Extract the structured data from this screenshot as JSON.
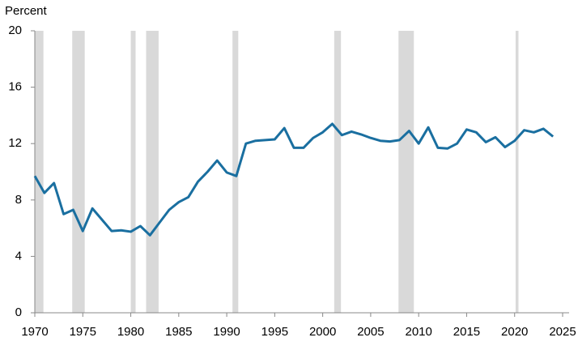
{
  "chart_data": {
    "type": "line",
    "y_axis_label": "Percent",
    "x": [
      1970,
      1971,
      1972,
      1973,
      1974,
      1975,
      1976,
      1977,
      1978,
      1979,
      1980,
      1981,
      1982,
      1983,
      1984,
      1985,
      1986,
      1987,
      1988,
      1989,
      1990,
      1991,
      1992,
      1993,
      1994,
      1995,
      1996,
      1997,
      1998,
      1999,
      2000,
      2001,
      2002,
      2003,
      2004,
      2005,
      2006,
      2007,
      2008,
      2009,
      2010,
      2011,
      2012,
      2013,
      2014,
      2015,
      2016,
      2017,
      2018,
      2019,
      2020,
      2021,
      2022,
      2023,
      2024
    ],
    "series": [
      {
        "color": "#1a6fa0",
        "values": [
          9.7,
          8.5,
          9.2,
          7.0,
          7.3,
          5.8,
          7.4,
          6.6,
          5.8,
          5.85,
          5.75,
          6.15,
          5.5,
          6.4,
          7.3,
          7.85,
          8.2,
          9.3,
          10.0,
          10.8,
          9.95,
          9.7,
          12.0,
          12.2,
          12.25,
          12.3,
          13.1,
          11.7,
          11.7,
          12.4,
          12.8,
          13.4,
          12.6,
          12.85,
          12.65,
          12.4,
          12.2,
          12.15,
          12.25,
          12.9,
          12.0,
          13.15,
          11.7,
          11.65,
          12.0,
          13.0,
          12.8,
          12.1,
          12.45,
          11.75,
          12.2,
          12.95,
          12.8,
          13.05,
          12.5
        ]
      }
    ],
    "shaded_periods": [
      [
        1970.0,
        1970.9
      ],
      [
        1973.9,
        1975.2
      ],
      [
        1980.0,
        1980.5
      ],
      [
        1981.6,
        1982.9
      ],
      [
        1990.6,
        1991.2
      ],
      [
        2001.2,
        2001.9
      ],
      [
        2007.9,
        2009.5
      ],
      [
        2020.1,
        2020.4
      ]
    ],
    "shade_color": "#d9d9d9",
    "xlim": [
      1970,
      2025
    ],
    "xticks": [
      1970,
      1975,
      1980,
      1985,
      1990,
      1995,
      2000,
      2005,
      2010,
      2015,
      2020,
      2025
    ],
    "ylim": [
      0,
      20
    ],
    "yticks": [
      0,
      4,
      8,
      12,
      16,
      20
    ]
  }
}
